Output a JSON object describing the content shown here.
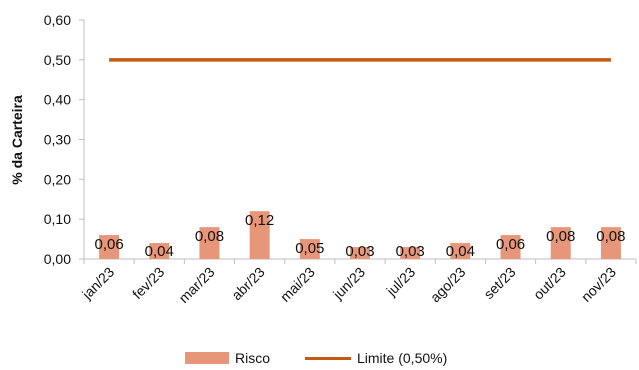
{
  "colors": {
    "bar": "#E8967A",
    "line": "#C55A11",
    "axis": "#bfbfbf",
    "text": "#111111"
  },
  "chart_data": {
    "type": "bar",
    "categories": [
      "jan/23",
      "fev/23",
      "mar/23",
      "abr/23",
      "mai/23",
      "jun/23",
      "jul/23",
      "ago/23",
      "set/23",
      "out/23",
      "nov/23"
    ],
    "series": [
      {
        "name": "Risco",
        "type": "bar",
        "values": [
          0.06,
          0.04,
          0.08,
          0.12,
          0.05,
          0.03,
          0.03,
          0.04,
          0.06,
          0.08,
          0.08
        ]
      },
      {
        "name": "Limite (0,50%)",
        "type": "line",
        "values": [
          0.5,
          0.5,
          0.5,
          0.5,
          0.5,
          0.5,
          0.5,
          0.5,
          0.5,
          0.5,
          0.5
        ]
      }
    ],
    "data_labels": [
      "0,06",
      "0,04",
      "0,08",
      "0,12",
      "0,05",
      "0,03",
      "0,03",
      "0,04",
      "0,06",
      "0,08",
      "0,08"
    ],
    "ylabel": "% da Carteira",
    "xlabel": "",
    "ylim": [
      0,
      0.6
    ],
    "yticks": [
      0,
      0.1,
      0.2,
      0.3,
      0.4,
      0.5,
      0.6
    ],
    "ytick_labels": [
      "0,00",
      "0,10",
      "0,20",
      "0,30",
      "0,40",
      "0,50",
      "0,60"
    ],
    "grid": false,
    "legend_position": "bottom"
  }
}
